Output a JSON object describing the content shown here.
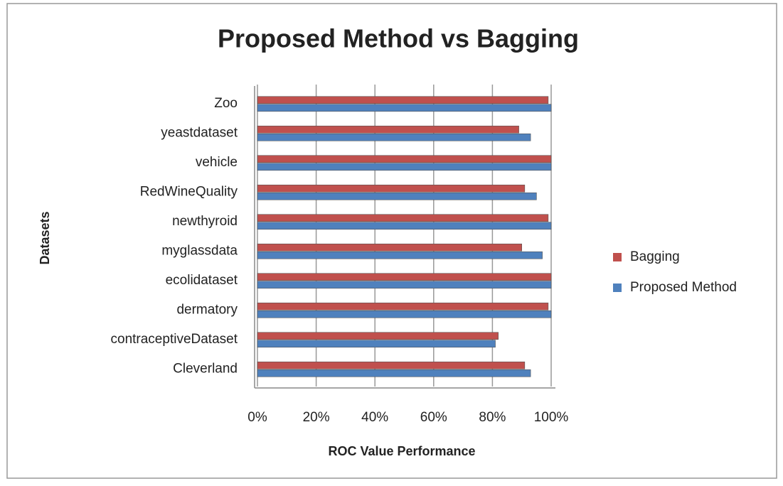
{
  "chart_data": {
    "type": "hbar",
    "title": "Proposed Method vs Bagging",
    "x_label": "ROC Value Performance",
    "y_label": "Datasets",
    "categories": [
      "Cleverland",
      "contraceptiveDataset",
      "dermatory",
      "ecolidataset",
      "myglassdata",
      "newthyroid",
      "RedWineQuality",
      "vehicle",
      "yeastdataset",
      "Zoo"
    ],
    "series": [
      {
        "name": "Bagging",
        "color": "#c0504d",
        "values": [
          91,
          82,
          99,
          100,
          90,
          99,
          91,
          100,
          89,
          99
        ]
      },
      {
        "name": "Proposed Method",
        "color": "#4f81bd",
        "values": [
          93,
          81,
          100,
          100,
          97,
          100,
          95,
          100,
          93,
          100
        ]
      }
    ],
    "xlim": [
      0,
      100
    ],
    "xticks": [
      {
        "value": 0,
        "label": "0%"
      },
      {
        "value": 20,
        "label": "20%"
      },
      {
        "value": 40,
        "label": "40%"
      },
      {
        "value": 60,
        "label": "60%"
      },
      {
        "value": 80,
        "label": "80%"
      },
      {
        "value": 100,
        "label": "100%"
      }
    ],
    "grid": true,
    "legend": "right"
  }
}
